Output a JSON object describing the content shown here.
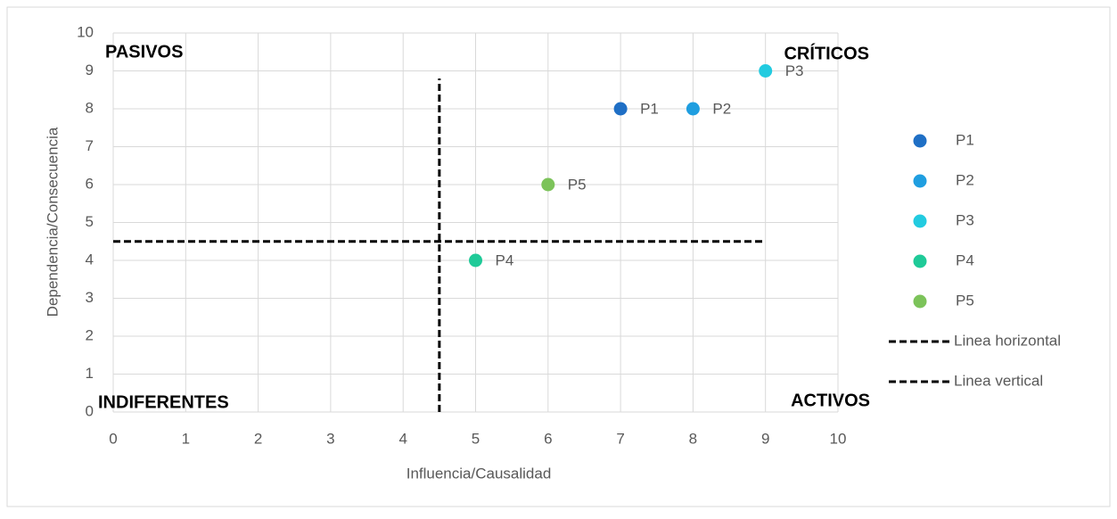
{
  "chart_data": {
    "type": "scatter",
    "xlabel": "Influencia/Causalidad",
    "ylabel": "Dependencia/Consecuencia",
    "xlim": [
      0,
      10
    ],
    "ylim": [
      0,
      10
    ],
    "xticks": [
      0,
      1,
      2,
      3,
      4,
      5,
      6,
      7,
      8,
      9,
      10
    ],
    "yticks": [
      0,
      1,
      2,
      3,
      4,
      5,
      6,
      7,
      8,
      9,
      10
    ],
    "grid": true,
    "legend": "right",
    "annotations": [
      "PASIVOS",
      "CRÍTICOS",
      "INDIFERENTES",
      "ACTIVOS"
    ],
    "series": [
      {
        "name": "P1",
        "color": "#1f6fc5",
        "x": [
          7
        ],
        "values": [
          8
        ]
      },
      {
        "name": "P2",
        "color": "#1f9ee0",
        "x": [
          8
        ],
        "values": [
          8
        ]
      },
      {
        "name": "P3",
        "color": "#22cbe0",
        "x": [
          9
        ],
        "values": [
          9
        ]
      },
      {
        "name": "P4",
        "color": "#1fca98",
        "x": [
          5
        ],
        "values": [
          4
        ]
      },
      {
        "name": "P5",
        "color": "#7cc35a",
        "x": [
          6
        ],
        "values": [
          6
        ]
      },
      {
        "name": "Linea horizontal",
        "color": "#000000",
        "style": "dashed",
        "x": [
          0,
          9
        ],
        "values": [
          4.5,
          4.5
        ]
      },
      {
        "name": "Linea vertical",
        "color": "#000000",
        "style": "dashed",
        "x": [
          4.5,
          4.5
        ],
        "values": [
          0,
          8.8
        ]
      }
    ]
  }
}
